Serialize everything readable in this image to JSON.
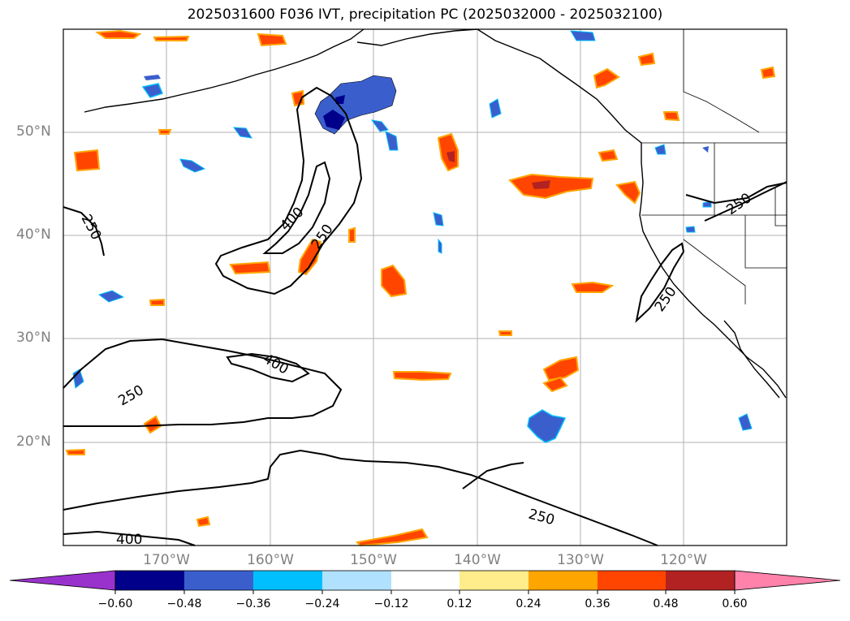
{
  "title": "2025031600 F036 IVT, precipitation PC (2025032000 - 2025032100)",
  "map": {
    "lat_labels": [
      "50°N",
      "40°N",
      "30°N",
      "20°N"
    ],
    "lon_labels": [
      "170°W",
      "160°W",
      "150°W",
      "140°W",
      "130°W",
      "120°W"
    ],
    "contour_labels": [
      "250",
      "400",
      "250",
      "400",
      "250",
      "250",
      "250",
      "250",
      "400"
    ],
    "gridline_color": "#b0b0b0",
    "coast_color": "#000000"
  },
  "colorbar": {
    "ticks": [
      "−0.60",
      "−0.48",
      "−0.36",
      "−0.24",
      "−0.12",
      "0.12",
      "0.24",
      "0.36",
      "0.48",
      "0.60"
    ],
    "colors": [
      "#9932cc",
      "#00008b",
      "#3a5fcd",
      "#00bfff",
      "#b0e2ff",
      "#ffffff",
      "#ffec8b",
      "#ffa500",
      "#ff4500",
      "#b22222",
      "#ff82ab"
    ]
  }
}
